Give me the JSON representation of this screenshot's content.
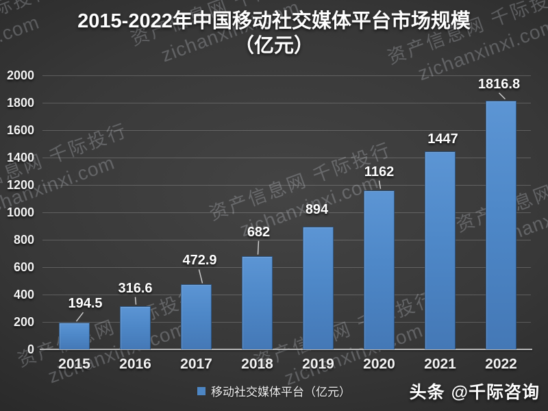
{
  "title": {
    "line1": "2015-2022年中国移动社交媒体平台市场规模",
    "line2": "（亿元）"
  },
  "chart_data": {
    "type": "bar",
    "title": "2015-2022年中国移动社交媒体平台市场规模（亿元）",
    "categories": [
      "2015",
      "2016",
      "2017",
      "2018",
      "2019",
      "2020",
      "2021",
      "2022"
    ],
    "series": [
      {
        "name": "移动社交媒体平台（亿元）",
        "values": [
          194.5,
          316.6,
          472.9,
          682,
          894,
          1162,
          1447,
          1816.8
        ]
      }
    ],
    "data_labels": [
      "194.5",
      "316.6",
      "472.9",
      "682",
      "894",
      "1162",
      "1447",
      "1816.8"
    ],
    "xlabel": "",
    "ylabel": "",
    "ylim": [
      0,
      2000
    ],
    "yticks": [
      0,
      200,
      400,
      600,
      800,
      1000,
      1200,
      1400,
      1600,
      1800,
      2000
    ],
    "grid": true,
    "legend_position": "bottom",
    "bar_color": "#4d86c4"
  },
  "legend": {
    "label": "移动社交媒体平台（亿元）"
  },
  "watermark": {
    "line1": "资产信息网 千际投行",
    "line2": "zichanxinxi.com"
  },
  "credit": {
    "brand": "头条",
    "handle": "@千际咨询"
  },
  "colors": {
    "bar": "#4d86c4",
    "axis": "#b9b9b9",
    "grid": "#6a6a6a",
    "text": "#ffffff",
    "background": "#2e2e2e"
  }
}
